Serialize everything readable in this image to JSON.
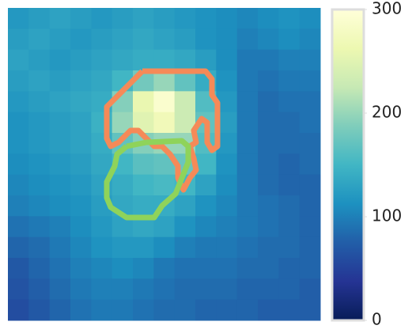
{
  "chart_data": {
    "type": "heatmap",
    "z": [
      [
        120,
        125,
        130,
        125,
        120,
        125,
        130,
        125,
        120,
        115,
        110,
        105,
        110,
        115,
        110
      ],
      [
        125,
        130,
        125,
        120,
        125,
        130,
        135,
        130,
        125,
        115,
        110,
        100,
        105,
        110,
        105
      ],
      [
        130,
        125,
        120,
        125,
        130,
        135,
        140,
        140,
        135,
        125,
        110,
        95,
        95,
        100,
        100
      ],
      [
        125,
        130,
        125,
        130,
        135,
        150,
        180,
        200,
        170,
        140,
        115,
        95,
        90,
        95,
        95
      ],
      [
        120,
        125,
        130,
        135,
        140,
        190,
        260,
        290,
        230,
        160,
        120,
        95,
        85,
        90,
        90
      ],
      [
        115,
        120,
        125,
        130,
        145,
        200,
        250,
        270,
        230,
        170,
        125,
        95,
        85,
        85,
        90
      ],
      [
        115,
        120,
        125,
        130,
        140,
        170,
        190,
        200,
        200,
        160,
        120,
        95,
        85,
        85,
        85
      ],
      [
        110,
        115,
        120,
        125,
        135,
        150,
        165,
        170,
        175,
        150,
        115,
        95,
        85,
        80,
        85
      ],
      [
        105,
        110,
        115,
        120,
        130,
        140,
        150,
        155,
        150,
        130,
        110,
        95,
        85,
        80,
        80
      ],
      [
        100,
        105,
        110,
        115,
        125,
        135,
        140,
        140,
        130,
        115,
        105,
        95,
        90,
        85,
        80
      ],
      [
        90,
        95,
        100,
        110,
        120,
        130,
        135,
        130,
        115,
        105,
        100,
        95,
        90,
        85,
        80
      ],
      [
        80,
        85,
        95,
        105,
        115,
        120,
        120,
        110,
        100,
        95,
        95,
        90,
        85,
        85,
        80
      ],
      [
        70,
        80,
        90,
        100,
        105,
        110,
        105,
        95,
        90,
        90,
        90,
        85,
        85,
        80,
        80
      ],
      [
        65,
        75,
        85,
        95,
        100,
        100,
        95,
        90,
        85,
        85,
        85,
        80,
        80,
        80,
        75
      ],
      [
        60,
        70,
        80,
        90,
        95,
        95,
        90,
        85,
        85,
        80,
        80,
        80,
        75,
        75,
        75
      ]
    ],
    "colormap": [
      "#081d58",
      "#253494",
      "#225ea8",
      "#1d91c0",
      "#41b6c4",
      "#7fcdbb",
      "#c7e9b4",
      "#edf8b1",
      "#ffffd9"
    ],
    "ylim": [
      0,
      300
    ],
    "yticks": [
      0,
      100,
      200,
      300
    ]
  }
}
